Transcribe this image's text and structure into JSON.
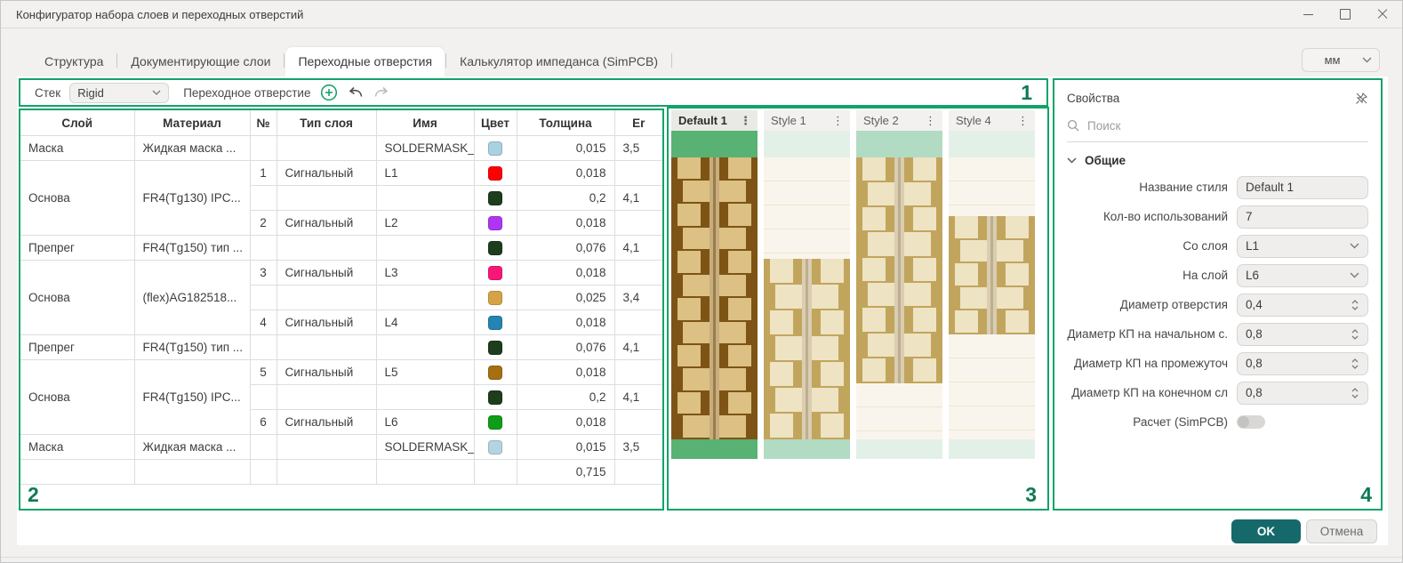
{
  "window": {
    "title": "Конфигуратор набора слоев и переходных отверстий"
  },
  "tabs": {
    "items": [
      "Структура",
      "Документирующие слои",
      "Переходные отверстия",
      "Калькулятор импеданса (SimPCB)"
    ],
    "active_index": 2
  },
  "units": {
    "value": "мм"
  },
  "toolbar": {
    "stack_label": "Стек",
    "stack_value": "Rigid",
    "via_label": "Переходное отверстие"
  },
  "annotations": {
    "one": "1",
    "two": "2",
    "three": "3",
    "four": "4"
  },
  "icons": {
    "kebab_menu": "⋮"
  },
  "table": {
    "columns": [
      "Слой",
      "Материал",
      "№",
      "Тип слоя",
      "Имя",
      "Цвет",
      "Толщина",
      "Er"
    ],
    "rows": [
      {
        "group": {
          "layer": "Маска",
          "material": "Жидкая маска ...",
          "span": 1
        },
        "num": "",
        "type": "",
        "name": "SOLDERMASK_...",
        "color": "#a9d1e0",
        "thickness": "0,015",
        "er": "3,5"
      },
      {
        "group": {
          "layer": "Основа",
          "material": "FR4(Tg130) IPC...",
          "span": 3
        },
        "num": "1",
        "type": "Сигнальный",
        "name": "L1",
        "color": "#fe0000",
        "thickness": "0,018",
        "er": ""
      },
      {
        "num": "",
        "type": "",
        "name": "",
        "color": "#1d3d1d",
        "thickness": "0,2",
        "er": "4,1"
      },
      {
        "num": "2",
        "type": "Сигнальный",
        "name": "L2",
        "color": "#ad36f3",
        "thickness": "0,018",
        "er": ""
      },
      {
        "group": {
          "layer": "Препрег",
          "material": "FR4(Tg150) тип ...",
          "span": 1
        },
        "num": "",
        "type": "",
        "name": "",
        "color": "#1d3d1d",
        "thickness": "0,076",
        "er": "4,1"
      },
      {
        "group": {
          "layer": "Основа",
          "material": "(flex)AG182518...",
          "span": 3
        },
        "num": "3",
        "type": "Сигнальный",
        "name": "L3",
        "color": "#f81777",
        "thickness": "0,018",
        "er": ""
      },
      {
        "num": "",
        "type": "",
        "name": "",
        "color": "#d5a346",
        "thickness": "0,025",
        "er": "3,4"
      },
      {
        "num": "4",
        "type": "Сигнальный",
        "name": "L4",
        "color": "#2484b2",
        "thickness": "0,018",
        "er": ""
      },
      {
        "group": {
          "layer": "Препрег",
          "material": "FR4(Tg150) тип ...",
          "span": 1
        },
        "num": "",
        "type": "",
        "name": "",
        "color": "#1d3d1d",
        "thickness": "0,076",
        "er": "4,1"
      },
      {
        "group": {
          "layer": "Основа",
          "material": "FR4(Tg150) IPC...",
          "span": 3
        },
        "num": "5",
        "type": "Сигнальный",
        "name": "L5",
        "color": "#a56f12",
        "thickness": "0,018",
        "er": ""
      },
      {
        "num": "",
        "type": "",
        "name": "",
        "color": "#1d3d1d",
        "thickness": "0,2",
        "er": "4,1"
      },
      {
        "num": "6",
        "type": "Сигнальный",
        "name": "L6",
        "color": "#0f9d18",
        "thickness": "0,018",
        "er": ""
      },
      {
        "group": {
          "layer": "Маска",
          "material": "Жидкая маска ...",
          "span": 1
        },
        "num": "",
        "type": "",
        "name": "SOLDERMASK_...",
        "color": "#b5d4e1",
        "thickness": "0,015",
        "er": "3,5"
      },
      {
        "total": true,
        "num": "",
        "type": "",
        "name": "",
        "color": "",
        "thickness": "0,715",
        "er": ""
      }
    ]
  },
  "previews": {
    "styles": [
      {
        "name": "Default 1",
        "selected": true,
        "segments": [
          {
            "kind": "mask",
            "from": 0,
            "to": 8
          },
          {
            "kind": "via",
            "from": 8,
            "to": 94
          },
          {
            "kind": "mask",
            "from": 94,
            "to": 100
          }
        ]
      },
      {
        "name": "Style 1",
        "selected": false,
        "segments": [
          {
            "kind": "mask_faded",
            "from": 0,
            "to": 8
          },
          {
            "kind": "fade",
            "from": 8,
            "to": 39
          },
          {
            "kind": "via",
            "from": 39,
            "to": 94
          },
          {
            "kind": "mask",
            "from": 94,
            "to": 100
          }
        ]
      },
      {
        "name": "Style 2",
        "selected": false,
        "segments": [
          {
            "kind": "mask",
            "from": 0,
            "to": 8
          },
          {
            "kind": "via",
            "from": 8,
            "to": 77
          },
          {
            "kind": "fade",
            "from": 77,
            "to": 94
          },
          {
            "kind": "mask_faded",
            "from": 94,
            "to": 100
          }
        ]
      },
      {
        "name": "Style 4",
        "selected": false,
        "segments": [
          {
            "kind": "mask_faded",
            "from": 0,
            "to": 8
          },
          {
            "kind": "fade",
            "from": 8,
            "to": 26
          },
          {
            "kind": "via",
            "from": 26,
            "to": 62
          },
          {
            "kind": "fade",
            "from": 62,
            "to": 94
          },
          {
            "kind": "mask_faded",
            "from": 94,
            "to": 100
          }
        ]
      }
    ]
  },
  "properties": {
    "title": "Свойства",
    "search_placeholder": "Поиск",
    "section": "Общие",
    "fields": [
      {
        "label": "Название стиля",
        "value": "Default 1",
        "control": "text"
      },
      {
        "label": "Кол-во использований",
        "value": "7",
        "control": "text"
      },
      {
        "label": "Со слоя",
        "value": "L1",
        "control": "select"
      },
      {
        "label": "На слой",
        "value": "L6",
        "control": "select"
      },
      {
        "label": "Диаметр отверстия",
        "value": "0,4",
        "control": "spin"
      },
      {
        "label": "Диаметр КП на начальном с.",
        "value": "0,8",
        "control": "spin"
      },
      {
        "label": "Диаметр КП на промежуточ",
        "value": "0,8",
        "control": "spin"
      },
      {
        "label": "Диаметр КП на конечном сл",
        "value": "0,8",
        "control": "spin"
      },
      {
        "label": "Расчет (SimPCB)",
        "value": "off",
        "control": "toggle"
      }
    ]
  },
  "footer": {
    "ok": "OK",
    "cancel": "Отмена"
  },
  "colors": {
    "region_border": "#12a26a",
    "annotation": "#0d7b52",
    "ok_button": "#15696a",
    "selected_preview": {
      "mask": "#58b273",
      "substrate": "#7d5415",
      "pad": "#dcc084",
      "hole": "#c7ae7e",
      "hole_core": "#9c7c4a"
    },
    "muted_preview": {
      "mask": "#b2dbc3",
      "mask_faded": "#e3f0e8",
      "substrate": "#c2a55d",
      "pad": "#eee3c3",
      "hole": "#d9cdb2",
      "hole_core": "#bfae8e",
      "fade_bg": "#faf5ec",
      "fade_line": "#eee4d0"
    }
  }
}
